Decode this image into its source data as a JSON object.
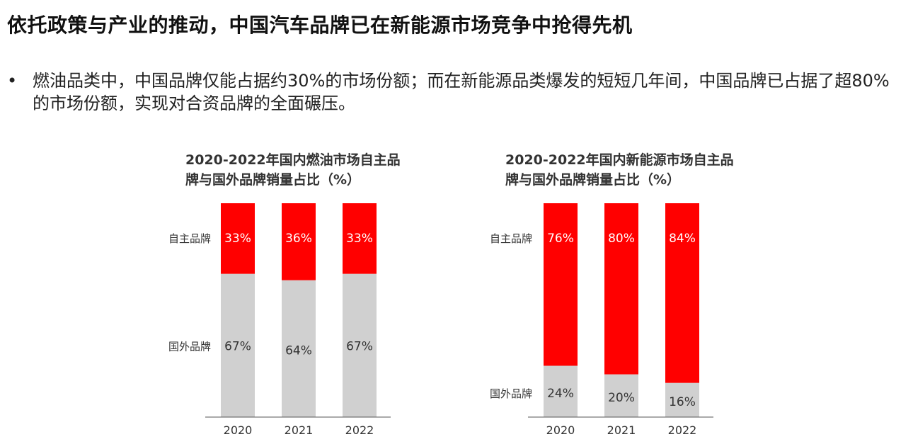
{
  "headline": "依托政策与产业的推动，中国汽车品牌已在新能源市场竞争中抢得先机",
  "bullet": {
    "marker": "•",
    "text": "燃油品类中，中国品牌仅能占据约30%的市场份额；而在新能源品类爆发的短短几年间，中国品牌已占据了超80%的市场份额，实现对合资品牌的全面碾压。"
  },
  "colors": {
    "domestic": "#ff0000",
    "foreign": "#d0d0d0",
    "axis": "#555555"
  },
  "chart_data": [
    {
      "type": "bar",
      "stacked": true,
      "title": "2020-2022年国内燃油市场自主品\n牌与国外品牌销量占比（%）",
      "categories": [
        "2020",
        "2021",
        "2022"
      ],
      "series": [
        {
          "name": "国外品牌",
          "values": [
            67,
            64,
            67
          ],
          "labels": [
            "67%",
            "64%",
            "67%"
          ],
          "color": "#d0d0d0"
        },
        {
          "name": "自主品牌",
          "values": [
            33,
            36,
            33
          ],
          "labels": [
            "33%",
            "36%",
            "33%"
          ],
          "color": "#ff0000"
        }
      ],
      "ylim": [
        0,
        100
      ],
      "grid": false,
      "legend": "left"
    },
    {
      "type": "bar",
      "stacked": true,
      "title": "2020-2022年国内新能源市场自主品\n牌与国外品牌销量占比（%）",
      "categories": [
        "2020",
        "2021",
        "2022"
      ],
      "series": [
        {
          "name": "国外品牌",
          "values": [
            24,
            20,
            16
          ],
          "labels": [
            "24%",
            "20%",
            "16%"
          ],
          "color": "#d0d0d0"
        },
        {
          "name": "自主品牌",
          "values": [
            76,
            80,
            84
          ],
          "labels": [
            "76%",
            "80%",
            "84%"
          ],
          "color": "#ff0000"
        }
      ],
      "ylim": [
        0,
        100
      ],
      "grid": false,
      "legend": "left"
    }
  ]
}
